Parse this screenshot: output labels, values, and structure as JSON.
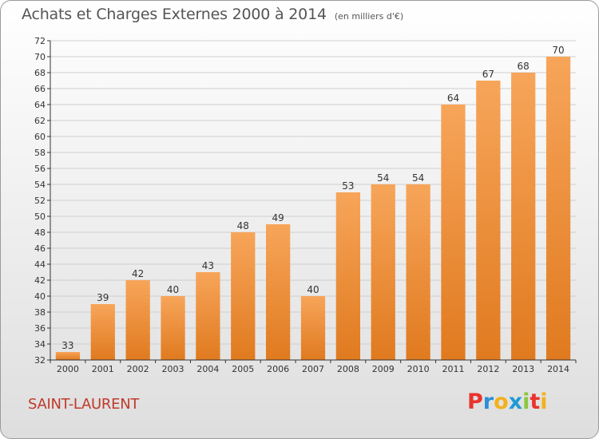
{
  "header": {
    "title": "Achats et Charges Externes 2000 à 2014",
    "subtitle": "(en milliers d'€)"
  },
  "footer": {
    "commune": "SAINT-LAURENT",
    "brand_letters": [
      "P",
      "r",
      "o",
      "x",
      "i",
      "t",
      "i"
    ],
    "brand_colors": [
      "#e8342c",
      "#2a8fd6",
      "#f2b11b",
      "#1e9ad6",
      "#8dc63f",
      "#e8342c",
      "#f2b11b"
    ]
  },
  "colors": {
    "bar_light": "#f7a55a",
    "bar_dark": "#e07a1f",
    "grid": "#cfcfcf",
    "axis": "#333333",
    "commune": "#c0392b"
  },
  "chart_data": {
    "type": "bar",
    "categories": [
      "2000",
      "2001",
      "2002",
      "2003",
      "2004",
      "2005",
      "2006",
      "2007",
      "2008",
      "2009",
      "2010",
      "2011",
      "2012",
      "2013",
      "2014"
    ],
    "values": [
      33,
      39,
      42,
      40,
      43,
      48,
      49,
      40,
      53,
      54,
      54,
      64,
      67,
      68,
      70
    ],
    "ylim": [
      32,
      72
    ],
    "ytick_step": 2,
    "grid": true,
    "xlabel": "",
    "ylabel": ""
  }
}
